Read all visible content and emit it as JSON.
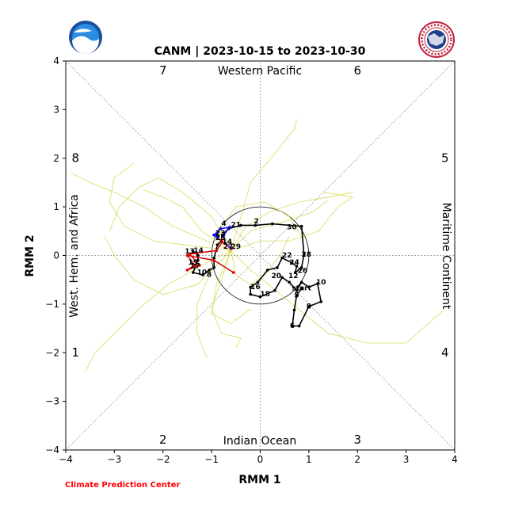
{
  "header": {
    "title": "CANM | 2023-10-15 to 2023-10-30",
    "credit": "Climate Prediction Center"
  },
  "logos": {
    "left": "noaa-logo",
    "right": "national-weather-service-logo"
  },
  "colors": {
    "observed_pre": "#dd0000",
    "observed_mid": "#0000ee",
    "observed_pt": "#9900cc",
    "forecast_mean": "#000000",
    "ensemble": "#d4d43a",
    "credit": "#ff0000"
  },
  "chart_data": {
    "type": "line",
    "title": "CANM | 2023-10-15 to 2023-10-30",
    "xlabel": "RMM 1",
    "ylabel": "RMM 2",
    "xlim": [
      -4,
      4
    ],
    "ylim": [
      -4,
      4
    ],
    "ticks": [
      -4,
      -3,
      -2,
      -1,
      0,
      1,
      2,
      3,
      4
    ],
    "grid": false,
    "unit_circle_radius": 1,
    "phase_numbers": [
      {
        "label": "1",
        "x": -3.8,
        "y": -2.0
      },
      {
        "label": "2",
        "x": -2.0,
        "y": -3.8
      },
      {
        "label": "3",
        "x": 2.0,
        "y": -3.8
      },
      {
        "label": "4",
        "x": 3.8,
        "y": -2.0
      },
      {
        "label": "5",
        "x": 3.8,
        "y": 2.0
      },
      {
        "label": "6",
        "x": 2.0,
        "y": 3.8
      },
      {
        "label": "7",
        "x": -2.0,
        "y": 3.8
      },
      {
        "label": "8",
        "x": -3.8,
        "y": 2.0
      }
    ],
    "region_labels": {
      "top": "Western Pacific",
      "bottom": "Indian Ocean",
      "left": "West. Hem. and Africa",
      "right": "Maritime Continent"
    },
    "series": [
      {
        "role": "observed-early",
        "points": [
          [
            -0.55,
            -0.35
          ],
          [
            -0.95,
            -0.1
          ],
          [
            -1.5,
            0.0
          ],
          [
            -1.35,
            -0.2
          ],
          [
            -1.5,
            -0.3
          ],
          [
            -1.25,
            -0.2
          ],
          [
            -1.45,
            0.03
          ],
          [
            -1.3,
            0.05
          ],
          [
            -0.9,
            0.1
          ],
          [
            -0.78,
            0.28
          ],
          [
            -0.88,
            0.38
          ]
        ]
      },
      {
        "role": "observed-recent",
        "points": [
          [
            -0.88,
            0.38
          ],
          [
            -0.95,
            0.42
          ],
          [
            -0.82,
            0.55
          ],
          [
            -0.63,
            0.58
          ],
          [
            -0.75,
            0.42
          ],
          [
            -0.72,
            0.25
          ],
          [
            -0.6,
            0.15
          ]
        ]
      },
      {
        "role": "observed-last",
        "points": [
          [
            -0.72,
            0.25
          ],
          [
            -0.6,
            0.14
          ]
        ]
      },
      {
        "role": "ensemble-mean-forecast",
        "points": [
          [
            0.85,
            -0.68
          ],
          [
            0.75,
            -0.82
          ],
          [
            0.7,
            -1.12
          ],
          [
            0.66,
            -1.45
          ],
          [
            0.8,
            -1.45
          ],
          [
            1.0,
            -1.05
          ],
          [
            1.25,
            -0.95
          ],
          [
            1.18,
            -0.58
          ],
          [
            1.0,
            -0.65
          ],
          [
            0.85,
            -0.55
          ],
          [
            0.75,
            -0.72
          ],
          [
            0.6,
            -0.55
          ],
          [
            0.45,
            -0.45
          ],
          [
            0.3,
            -0.72
          ],
          [
            0.0,
            -0.85
          ],
          [
            -0.2,
            -0.8
          ],
          [
            -0.2,
            -0.65
          ],
          [
            -0.05,
            -0.55
          ],
          [
            0.15,
            -0.3
          ],
          [
            0.35,
            -0.25
          ],
          [
            0.45,
            -0.05
          ],
          [
            0.65,
            -0.15
          ],
          [
            0.75,
            -0.22
          ],
          [
            0.72,
            -0.35
          ],
          [
            0.85,
            -0.25
          ],
          [
            0.9,
            0.02
          ],
          [
            0.85,
            0.6
          ],
          [
            0.25,
            0.65
          ],
          [
            -0.1,
            0.62
          ],
          [
            -0.4,
            0.62
          ],
          [
            -0.65,
            0.55
          ],
          [
            -0.78,
            0.42
          ],
          [
            -0.8,
            0.3
          ],
          [
            -0.88,
            0.22
          ],
          [
            -0.95,
            -0.05
          ],
          [
            -0.95,
            -0.25
          ],
          [
            -1.05,
            -0.3
          ],
          [
            -1.18,
            -0.4
          ],
          [
            -1.38,
            -0.35
          ],
          [
            -1.28,
            -0.1
          ],
          [
            -1.28,
            0.0
          ],
          [
            -1.38,
            0.08
          ]
        ]
      }
    ],
    "point_labels": [
      {
        "label": "start",
        "x": 0.85,
        "y": -0.68
      },
      {
        "label": "5",
        "x": 0.75,
        "y": -0.82
      },
      {
        "label": "6",
        "x": 0.66,
        "y": -1.45
      },
      {
        "label": "8",
        "x": 1.0,
        "y": -1.05
      },
      {
        "label": "10",
        "x": 1.25,
        "y": -0.55
      },
      {
        "label": "12",
        "x": 0.68,
        "y": -0.42
      },
      {
        "label": "16",
        "x": -0.1,
        "y": -0.65
      },
      {
        "label": "18",
        "x": 0.1,
        "y": -0.8
      },
      {
        "label": "20",
        "x": 0.33,
        "y": -0.42
      },
      {
        "label": "22",
        "x": 0.55,
        "y": 0.0
      },
      {
        "label": "24",
        "x": 0.7,
        "y": -0.15
      },
      {
        "label": "26",
        "x": 0.87,
        "y": -0.32
      },
      {
        "label": "28",
        "x": 0.95,
        "y": 0.02
      },
      {
        "label": "30",
        "x": 0.65,
        "y": 0.58
      },
      {
        "label": "2",
        "x": -0.08,
        "y": 0.7
      },
      {
        "label": "4",
        "x": -0.75,
        "y": 0.65
      },
      {
        "label": "21",
        "x": -0.5,
        "y": 0.63
      },
      {
        "label": "23",
        "x": -0.82,
        "y": 0.46
      },
      {
        "label": "25",
        "x": -0.82,
        "y": 0.36
      },
      {
        "label": "14",
        "x": -0.68,
        "y": 0.28
      },
      {
        "label": "27",
        "x": -0.66,
        "y": 0.18
      },
      {
        "label": "29",
        "x": -0.5,
        "y": 0.18
      },
      {
        "label": "14",
        "x": -1.27,
        "y": 0.1
      },
      {
        "label": "13",
        "x": -1.45,
        "y": 0.08
      },
      {
        "label": "19",
        "x": -1.38,
        "y": -0.15
      },
      {
        "label": "17",
        "x": -1.34,
        "y": -0.22
      },
      {
        "label": "10",
        "x": -1.2,
        "y": -0.35
      },
      {
        "label": "8",
        "x": -1.05,
        "y": -0.4
      }
    ],
    "ensemble_members": [
      [
        [
          -0.6,
          0.1
        ],
        [
          -1.1,
          0.3
        ],
        [
          -1.8,
          0.6
        ],
        [
          -2.4,
          1.0
        ],
        [
          -3.0,
          1.3
        ],
        [
          -3.5,
          1.5
        ],
        [
          -3.9,
          1.7
        ]
      ],
      [
        [
          -0.6,
          0.1
        ],
        [
          -1.2,
          -0.2
        ],
        [
          -1.9,
          -0.6
        ],
        [
          -2.5,
          -1.1
        ],
        [
          -3.0,
          -1.6
        ],
        [
          -3.4,
          -2.0
        ],
        [
          -3.6,
          -2.4
        ]
      ],
      [
        [
          -0.6,
          0.1
        ],
        [
          -0.8,
          -0.5
        ],
        [
          -1.0,
          -1.1
        ],
        [
          -0.8,
          -1.6
        ],
        [
          -0.4,
          -1.7
        ],
        [
          -0.5,
          -1.9
        ]
      ],
      [
        [
          -0.6,
          0.1
        ],
        [
          -0.2,
          -0.3
        ],
        [
          0.3,
          -0.7
        ],
        [
          0.9,
          -1.2
        ],
        [
          1.4,
          -1.6
        ],
        [
          2.2,
          -1.8
        ],
        [
          3.0,
          -1.8
        ],
        [
          3.8,
          -1.1
        ]
      ],
      [
        [
          -0.6,
          0.1
        ],
        [
          -0.3,
          0.6
        ],
        [
          0.2,
          0.9
        ],
        [
          0.8,
          1.1
        ],
        [
          1.4,
          1.2
        ],
        [
          1.9,
          1.3
        ]
      ],
      [
        [
          -0.6,
          0.1
        ],
        [
          -0.4,
          0.8
        ],
        [
          -0.2,
          1.5
        ],
        [
          0.3,
          2.1
        ],
        [
          0.7,
          2.6
        ],
        [
          0.75,
          2.8
        ]
      ],
      [
        [
          -0.6,
          0.1
        ],
        [
          -1.0,
          0.8
        ],
        [
          -1.6,
          1.3
        ],
        [
          -2.1,
          1.6
        ],
        [
          -2.5,
          1.4
        ],
        [
          -2.9,
          1.0
        ],
        [
          -3.1,
          0.5
        ]
      ],
      [
        [
          -0.6,
          0.1
        ],
        [
          -1.2,
          0.5
        ],
        [
          -1.6,
          1.0
        ],
        [
          -2.0,
          1.2
        ],
        [
          -2.4,
          1.35
        ]
      ],
      [
        [
          -0.6,
          0.1
        ],
        [
          -1.3,
          -0.6
        ],
        [
          -2.0,
          -0.8
        ],
        [
          -2.6,
          -0.5
        ],
        [
          -3.0,
          0.0
        ],
        [
          -3.2,
          0.4
        ]
      ],
      [
        [
          -0.6,
          0.1
        ],
        [
          -0.5,
          -0.4
        ],
        [
          -0.2,
          -0.6
        ],
        [
          0.1,
          -0.4
        ],
        [
          0.4,
          0.0
        ],
        [
          0.6,
          0.4
        ]
      ],
      [
        [
          -0.6,
          0.1
        ],
        [
          0.0,
          0.3
        ],
        [
          0.6,
          0.3
        ],
        [
          1.2,
          0.5
        ],
        [
          1.6,
          1.0
        ],
        [
          1.9,
          1.2
        ],
        [
          1.3,
          1.3
        ]
      ],
      [
        [
          -0.6,
          0.1
        ],
        [
          -1.0,
          -0.3
        ],
        [
          -1.3,
          -1.0
        ],
        [
          -1.3,
          -1.6
        ],
        [
          -1.1,
          -2.1
        ]
      ],
      [
        [
          -0.6,
          0.1
        ],
        [
          -0.8,
          0.6
        ],
        [
          -0.5,
          1.0
        ],
        [
          0.1,
          1.1
        ],
        [
          0.6,
          0.8
        ],
        [
          0.9,
          0.3
        ]
      ],
      [
        [
          -0.6,
          0.1
        ],
        [
          -1.4,
          0.2
        ],
        [
          -2.2,
          0.3
        ],
        [
          -2.8,
          0.6
        ],
        [
          -3.1,
          1.1
        ],
        [
          -3.0,
          1.6
        ],
        [
          -2.6,
          1.9
        ]
      ],
      [
        [
          -0.6,
          0.1
        ],
        [
          -0.9,
          -0.6
        ],
        [
          -1.0,
          -1.2
        ],
        [
          -0.6,
          -1.4
        ],
        [
          -0.2,
          -1.1
        ]
      ],
      [
        [
          -0.6,
          0.1
        ],
        [
          -0.2,
          0.5
        ],
        [
          0.5,
          0.7
        ],
        [
          1.1,
          0.9
        ],
        [
          1.4,
          1.15
        ]
      ]
    ]
  }
}
